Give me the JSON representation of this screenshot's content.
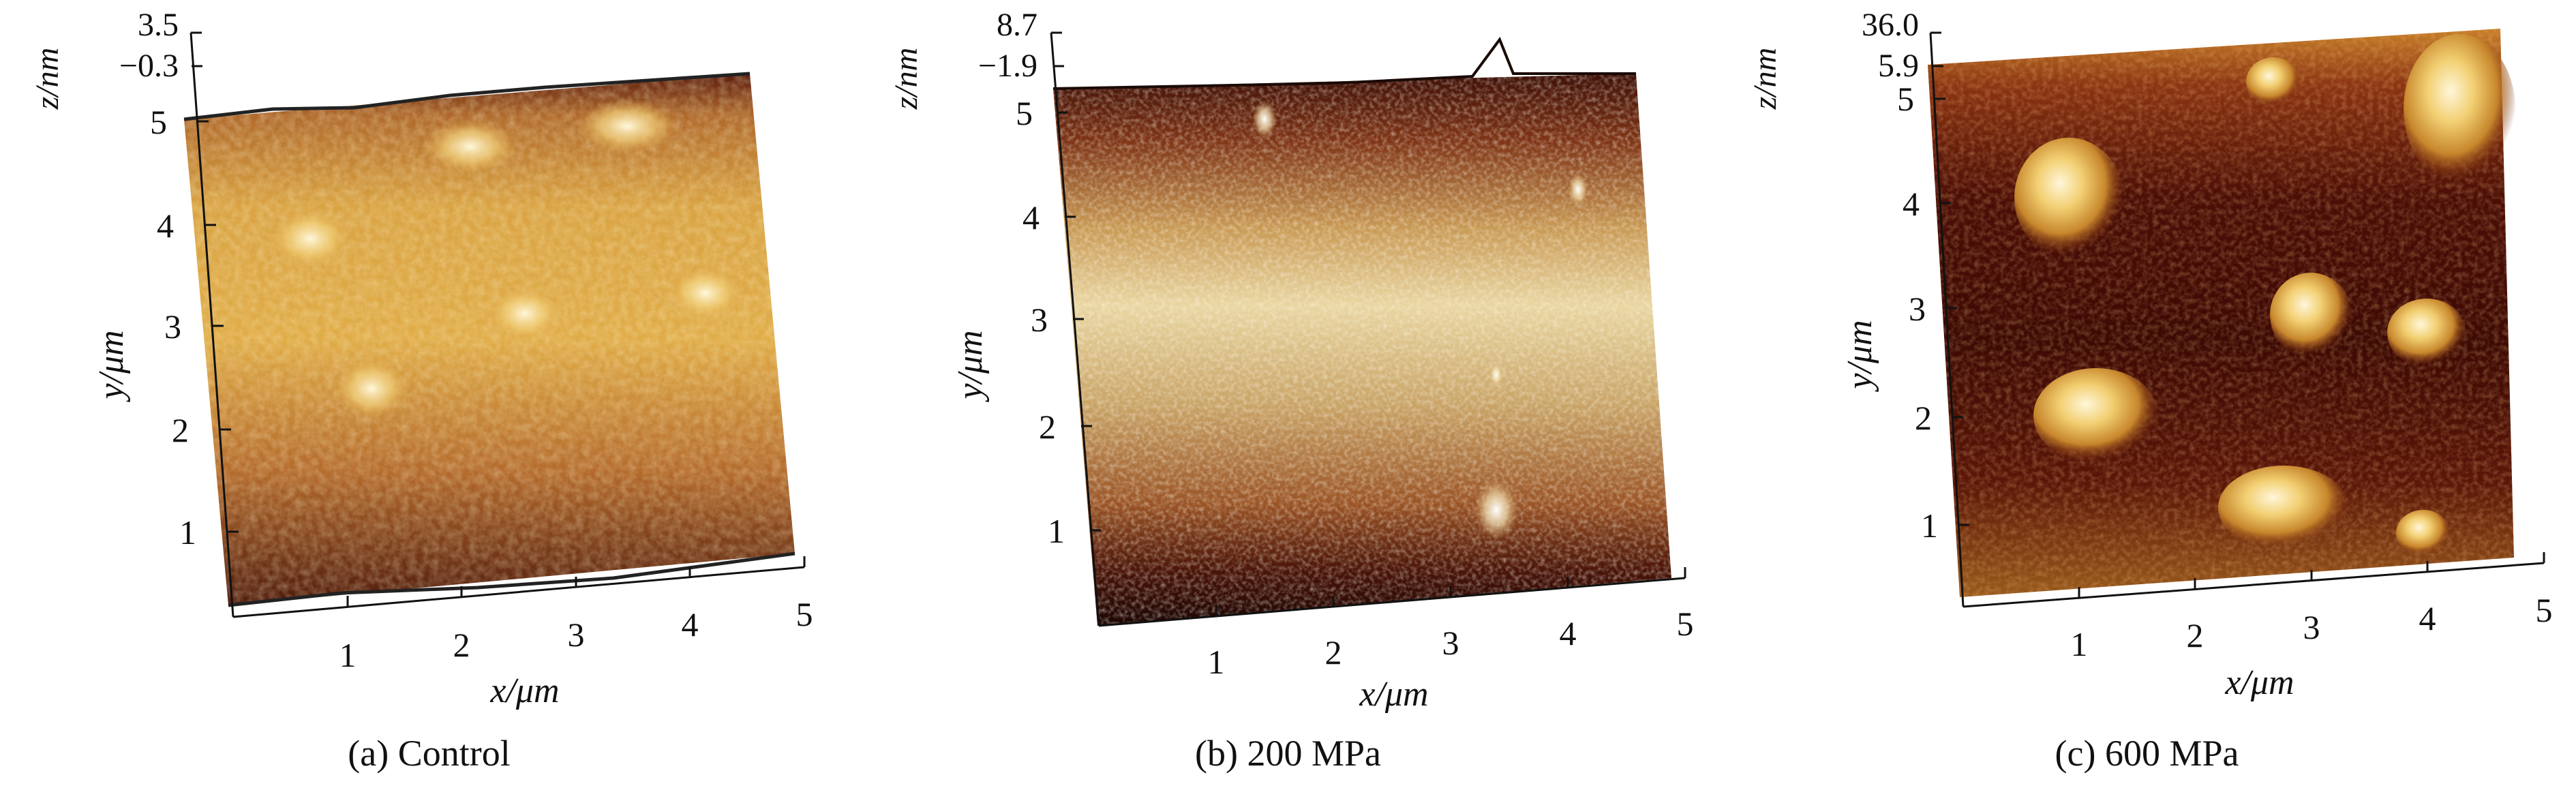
{
  "panels": [
    {
      "id": "a",
      "caption": "(a) Control",
      "z_axis": {
        "label": "z/nm",
        "max_label": "3.5",
        "min_label": "−0.3"
      },
      "y_axis": {
        "label": "y/μm",
        "ticks": [
          "1",
          "2",
          "3",
          "4",
          "5"
        ]
      },
      "x_axis": {
        "label": "x/μm",
        "ticks": [
          "1",
          "2",
          "3",
          "4",
          "5"
        ]
      },
      "surface": {
        "palette": [
          "#3a0c08",
          "#7b2614",
          "#b5622a",
          "#d99a3c",
          "#efd37a",
          "#fff3c8"
        ],
        "background_level": 0.62
      }
    },
    {
      "id": "b",
      "caption": "(b) 200 MPa",
      "z_axis": {
        "label": "z/nm",
        "max_label": "8.7",
        "min_label": "−1.9"
      },
      "y_axis": {
        "label": "y/μm",
        "ticks": [
          "1",
          "2",
          "3",
          "4",
          "5"
        ]
      },
      "x_axis": {
        "label": "x/μm",
        "ticks": [
          "1",
          "2",
          "3",
          "4",
          "5"
        ]
      },
      "surface": {
        "palette": [
          "#1a0604",
          "#5a1a0c",
          "#a2562a",
          "#d7ad66",
          "#f3e2b0",
          "#ffffff"
        ],
        "background_level": 0.6
      }
    },
    {
      "id": "c",
      "caption": "(c) 600 MPa",
      "z_axis": {
        "label": "z/nm",
        "max_label": "36.0",
        "min_label": "5.9"
      },
      "y_axis": {
        "label": "y/μm",
        "ticks": [
          "1",
          "2",
          "3",
          "4",
          "5"
        ]
      },
      "x_axis": {
        "label": "x/μm",
        "ticks": [
          "1",
          "2",
          "3",
          "4",
          "5"
        ]
      },
      "surface": {
        "palette": [
          "#2a0604",
          "#5e1308",
          "#8e3a14",
          "#c98a2e",
          "#f0cf6a",
          "#fff6d6"
        ],
        "background_level": 0.28
      }
    }
  ]
}
